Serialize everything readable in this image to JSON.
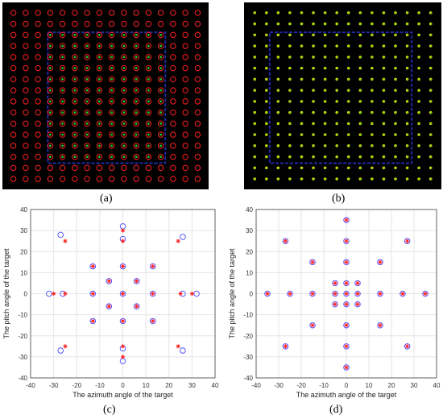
{
  "captions": {
    "a": "(a)",
    "b": "(b)",
    "c": "(c)",
    "d": "(d)"
  },
  "colors": {
    "background": "#000000",
    "box_blue": "#1f2aa8",
    "red_marker": "#ff2020",
    "green_marker": "#22cc33",
    "yellow_marker": "#dddd00",
    "blue_circle": "#4a4aff",
    "grid": "#e4e4e4"
  },
  "images": {
    "a": {
      "description_markers": [
        "red-circle",
        "green-dot"
      ],
      "grid": [
        16,
        16
      ]
    },
    "b": {
      "description_markers": [
        "yellow-dot",
        "green-dot"
      ],
      "grid": [
        16,
        16
      ]
    }
  },
  "chart_data": [
    {
      "id": "c",
      "type": "scatter",
      "xlabel": "The azimuth angle of the target",
      "ylabel": "The pitch angle of the target",
      "xlim": [
        -40,
        40
      ],
      "ylim": [
        -40,
        40
      ],
      "xticks": [
        -40,
        -30,
        -20,
        -10,
        0,
        10,
        20,
        30,
        40
      ],
      "yticks": [
        -40,
        -30,
        -20,
        -10,
        0,
        10,
        20,
        30,
        40
      ],
      "grid": true,
      "series": [
        {
          "marker": "circle",
          "color": "#4a4aff",
          "points": [
            [
              0,
              32
            ],
            [
              0,
              26
            ],
            [
              0,
              13
            ],
            [
              0,
              0
            ],
            [
              0,
              -13
            ],
            [
              0,
              -26
            ],
            [
              0,
              -32
            ],
            [
              -27,
              28
            ],
            [
              26,
              27
            ],
            [
              -27,
              -27
            ],
            [
              26,
              -27
            ],
            [
              -32,
              0
            ],
            [
              -26,
              0
            ],
            [
              -13,
              0
            ],
            [
              13,
              0
            ],
            [
              26,
              0
            ],
            [
              32,
              0
            ],
            [
              -13,
              13
            ],
            [
              13,
              13
            ],
            [
              -13,
              -13
            ],
            [
              13,
              -13
            ],
            [
              -6,
              6
            ],
            [
              6,
              6
            ],
            [
              -6,
              -6
            ],
            [
              6,
              -6
            ]
          ]
        },
        {
          "marker": "asterisk",
          "color": "#ff2020",
          "points": [
            [
              0,
              30
            ],
            [
              0,
              25
            ],
            [
              0,
              13
            ],
            [
              0,
              0
            ],
            [
              0,
              -13
            ],
            [
              0,
              -25
            ],
            [
              0,
              -30
            ],
            [
              -25,
              25
            ],
            [
              24,
              25
            ],
            [
              -25,
              -25
            ],
            [
              24,
              -25
            ],
            [
              -30,
              0
            ],
            [
              -25,
              0
            ],
            [
              -13,
              0
            ],
            [
              13,
              0
            ],
            [
              25,
              0
            ],
            [
              30,
              0
            ],
            [
              -13,
              13
            ],
            [
              13,
              13
            ],
            [
              -13,
              -13
            ],
            [
              13,
              -13
            ],
            [
              -6,
              6
            ],
            [
              6,
              6
            ],
            [
              -6,
              -6
            ],
            [
              6,
              -6
            ]
          ]
        }
      ]
    },
    {
      "id": "d",
      "type": "scatter",
      "xlabel": "The azimuth angle of the target",
      "ylabel": "The pitch angle of the target",
      "xlim": [
        -40,
        40
      ],
      "ylim": [
        -40,
        40
      ],
      "xticks": [
        -40,
        -30,
        -20,
        -10,
        0,
        10,
        20,
        30,
        40
      ],
      "yticks": [
        -40,
        -30,
        -20,
        -10,
        0,
        10,
        20,
        30,
        40
      ],
      "grid": true,
      "series": [
        {
          "marker": "circle",
          "color": "#4a4aff",
          "points": [
            [
              0,
              35
            ],
            [
              0,
              25
            ],
            [
              0,
              15
            ],
            [
              0,
              5
            ],
            [
              0,
              0
            ],
            [
              0,
              -5
            ],
            [
              0,
              -15
            ],
            [
              0,
              -25
            ],
            [
              0,
              -35
            ],
            [
              -27,
              25
            ],
            [
              27,
              25
            ],
            [
              -27,
              -25
            ],
            [
              27,
              -25
            ],
            [
              -35,
              0
            ],
            [
              -25,
              0
            ],
            [
              -15,
              0
            ],
            [
              -5,
              0
            ],
            [
              5,
              0
            ],
            [
              15,
              0
            ],
            [
              25,
              0
            ],
            [
              35,
              0
            ],
            [
              -15,
              15
            ],
            [
              15,
              15
            ],
            [
              -15,
              -15
            ],
            [
              15,
              -15
            ],
            [
              -5,
              5
            ],
            [
              5,
              5
            ],
            [
              -5,
              -5
            ],
            [
              5,
              -5
            ]
          ]
        },
        {
          "marker": "asterisk",
          "color": "#ff2020",
          "points": [
            [
              0,
              35
            ],
            [
              0,
              25
            ],
            [
              0,
              15
            ],
            [
              0,
              5
            ],
            [
              0,
              0
            ],
            [
              0,
              -5
            ],
            [
              0,
              -15
            ],
            [
              0,
              -25
            ],
            [
              0,
              -35
            ],
            [
              -27,
              25
            ],
            [
              27,
              25
            ],
            [
              -27,
              -25
            ],
            [
              27,
              -25
            ],
            [
              -35,
              0
            ],
            [
              -25,
              0
            ],
            [
              -15,
              0
            ],
            [
              -5,
              0
            ],
            [
              5,
              0
            ],
            [
              15,
              0
            ],
            [
              25,
              0
            ],
            [
              35,
              0
            ],
            [
              -15,
              15
            ],
            [
              15,
              15
            ],
            [
              -15,
              -15
            ],
            [
              15,
              -15
            ],
            [
              -5,
              5
            ],
            [
              5,
              5
            ],
            [
              -5,
              -5
            ],
            [
              5,
              -5
            ]
          ]
        }
      ]
    }
  ]
}
